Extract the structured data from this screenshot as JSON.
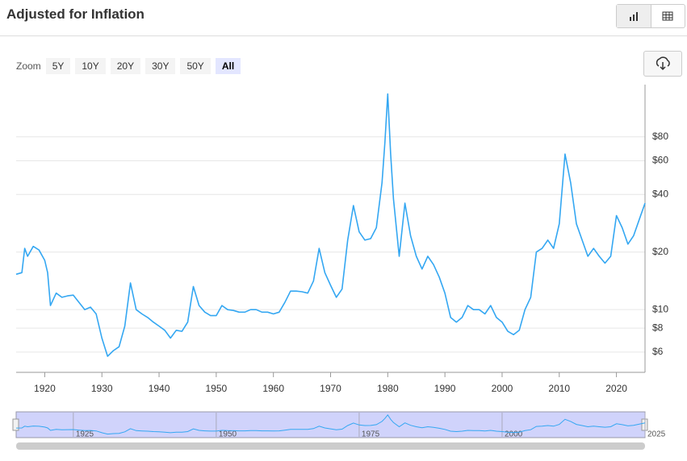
{
  "header": {
    "title": "Adjusted for Inflation"
  },
  "zoom": {
    "label": "Zoom",
    "buttons": [
      "5Y",
      "10Y",
      "20Y",
      "30Y",
      "50Y",
      "All"
    ]
  },
  "chart_data": {
    "type": "line",
    "color": "#34a7f2",
    "log_y": true,
    "grid": true,
    "x": [
      1915,
      1916,
      1916.5,
      1917,
      1918,
      1919,
      1920,
      1920.5,
      1921,
      1922,
      1923,
      1924,
      1925,
      1926,
      1927,
      1928,
      1929,
      1930,
      1931,
      1932,
      1933,
      1934,
      1935,
      1936,
      1937,
      1938,
      1939,
      1940,
      1941,
      1942,
      1943,
      1944,
      1945,
      1946,
      1947,
      1948,
      1949,
      1950,
      1951,
      1952,
      1953,
      1954,
      1955,
      1956,
      1957,
      1958,
      1959,
      1960,
      1961,
      1962,
      1963,
      1964,
      1965,
      1966,
      1967,
      1968,
      1969,
      1970,
      1971,
      1972,
      1973,
      1974,
      1975,
      1976,
      1977,
      1978,
      1979,
      1979.5,
      1980,
      1980.5,
      1981,
      1982,
      1983,
      1984,
      1985,
      1986,
      1987,
      1988,
      1989,
      1990,
      1991,
      1992,
      1993,
      1994,
      1995,
      1996,
      1997,
      1998,
      1999,
      2000,
      2001,
      2002,
      2003,
      2004,
      2005,
      2006,
      2007,
      2008,
      2009,
      2010,
      2011,
      2012,
      2013,
      2014,
      2015,
      2016,
      2017,
      2018,
      2019,
      2020,
      2021,
      2022,
      2023,
      2024,
      2025
    ],
    "values": [
      15.3,
      15.6,
      20.9,
      19,
      21.4,
      20.5,
      18.1,
      15.6,
      10.5,
      12.2,
      11.6,
      11.8,
      11.9,
      10.9,
      10,
      10.3,
      9.5,
      7.1,
      5.7,
      6.1,
      6.4,
      8.2,
      13.8,
      10,
      9.5,
      9.1,
      8.6,
      8.2,
      7.8,
      7.1,
      7.8,
      7.7,
      8.6,
      13.2,
      10.5,
      9.7,
      9.3,
      9.3,
      10.5,
      10,
      9.9,
      9.7,
      9.7,
      10,
      10,
      9.7,
      9.7,
      9.5,
      9.7,
      10.9,
      12.5,
      12.5,
      12.4,
      12.2,
      14.1,
      20.9,
      15.6,
      13.4,
      11.6,
      12.8,
      23.1,
      35,
      25.5,
      23.1,
      23.5,
      26.8,
      46,
      75,
      134,
      65,
      37.9,
      19,
      36,
      24.3,
      19,
      16.3,
      19,
      17.2,
      14.8,
      12.2,
      9.1,
      8.6,
      9.1,
      10.5,
      10,
      10,
      9.5,
      10.5,
      9.1,
      8.6,
      7.7,
      7.4,
      7.8,
      10,
      11.6,
      20,
      20.9,
      23.1,
      20.9,
      28.1,
      65,
      46,
      28.1,
      23.1,
      19,
      20.9,
      19,
      17.5,
      19,
      31,
      26.8,
      22,
      24.3,
      29.6,
      36
    ],
    "xlim": [
      1915,
      2025
    ],
    "ylim": [
      4.7,
      150
    ],
    "xticks": [
      1920,
      1930,
      1940,
      1950,
      1960,
      1970,
      1980,
      1990,
      2000,
      2010,
      2020
    ],
    "yticks": [
      {
        "value": 6,
        "label": "$6"
      },
      {
        "value": 8,
        "label": "$8"
      },
      {
        "value": 10,
        "label": "$10"
      },
      {
        "value": 20,
        "label": "$20"
      },
      {
        "value": 40,
        "label": "$40"
      },
      {
        "value": 60,
        "label": "$60"
      },
      {
        "value": 80,
        "label": "$80"
      }
    ],
    "navigator_ticks": [
      1925,
      1950,
      1975,
      2000,
      2025
    ]
  }
}
